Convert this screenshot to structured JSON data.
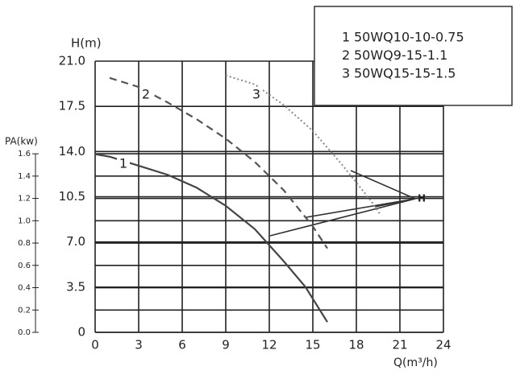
{
  "chart_data": {
    "type": "line",
    "y_label": "H(m)",
    "y2_label": "PA(kw)",
    "x_label": "Q(m³/h)",
    "annotation": "H",
    "xlim": [
      0,
      24
    ],
    "xticks": [
      0,
      3,
      6,
      9,
      12,
      15,
      18,
      21,
      24
    ],
    "ylim": [
      0,
      21
    ],
    "yticks": [
      0,
      3.5,
      {
        "value": 7,
        "label": "7.0"
      },
      10.5,
      {
        "value": 14,
        "label": "14.0"
      },
      17.5,
      {
        "value": 21,
        "label": "21.0"
      }
    ],
    "y2lim": [
      0,
      2.43
    ],
    "y2ticks": [
      {
        "value": 0,
        "label": "0.0"
      },
      0.2,
      0.4,
      0.6,
      0.8,
      {
        "value": 1,
        "label": "1.0"
      },
      1.2,
      1.4,
      1.6
    ],
    "grid": true,
    "series": [
      {
        "label": "1",
        "name": "50WQ10-10-0.75",
        "color": "#444444",
        "style": "solid",
        "x": [
          0,
          1,
          3,
          5,
          7,
          9,
          11,
          13,
          14.5,
          16
        ],
        "values": [
          13.8,
          13.6,
          12.9,
          12.2,
          11.2,
          9.8,
          8.0,
          5.5,
          3.5,
          0.8
        ]
      },
      {
        "label": "2",
        "name": "50WQ9-15-1.1",
        "color": "#555555",
        "style": "dashed",
        "x": [
          1,
          3,
          5,
          7,
          9,
          11,
          13,
          15,
          16
        ],
        "values": [
          19.7,
          19.0,
          17.8,
          16.5,
          15.0,
          13.2,
          11.0,
          8.2,
          6.5
        ]
      },
      {
        "label": "3",
        "name": "50WQ15-15-1.5",
        "color": "#888888",
        "style": "dotted",
        "x": [
          9,
          11,
          13,
          15,
          17,
          19,
          19.6
        ],
        "values": [
          19.9,
          19.2,
          17.6,
          15.6,
          13.0,
          10.2,
          9.2
        ]
      }
    ]
  }
}
